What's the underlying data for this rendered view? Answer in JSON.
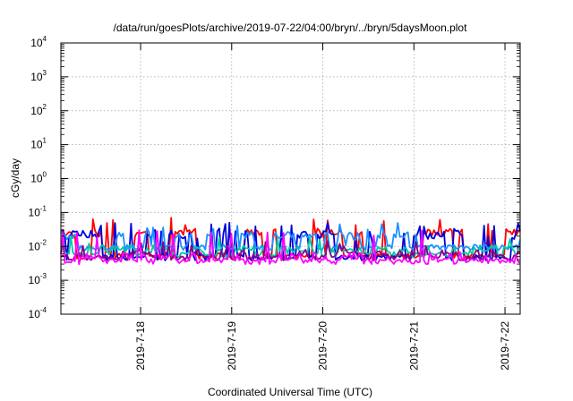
{
  "chart_data": {
    "type": "line",
    "title": "/data/run/goesPlots/archive/2019-07-22/04:00/bryn/../bryn/5daysMoon.plot",
    "xlabel": "Coordinated Universal Time (UTC)",
    "ylabel": "cGy/day",
    "yscale": "log",
    "ylim": [
      0.0001,
      10000
    ],
    "xlim": [
      "2019-07-17T03:00",
      "2019-07-22T04:00"
    ],
    "grid": true,
    "legend": "none",
    "y_ticks": [
      {
        "base": "10",
        "exp": "-4",
        "value": 0.0001
      },
      {
        "base": "10",
        "exp": "-3",
        "value": 0.001
      },
      {
        "base": "10",
        "exp": "-2",
        "value": 0.01
      },
      {
        "base": "10",
        "exp": "-1",
        "value": 0.1
      },
      {
        "base": "10",
        "exp": "0",
        "value": 1
      },
      {
        "base": "10",
        "exp": "1",
        "value": 10
      },
      {
        "base": "10",
        "exp": "2",
        "value": 100
      },
      {
        "base": "10",
        "exp": "3",
        "value": 1000
      },
      {
        "base": "10",
        "exp": "4",
        "value": 10000
      }
    ],
    "x_ticks": [
      {
        "label": "2019-7-18",
        "value": "2019-07-18T00:00"
      },
      {
        "label": "2019-7-19",
        "value": "2019-07-19T00:00"
      },
      {
        "label": "2019-7-20",
        "value": "2019-07-20T00:00"
      },
      {
        "label": "2019-7-21",
        "value": "2019-07-21T00:00"
      },
      {
        "label": "2019-7-22",
        "value": "2019-07-22T00:00"
      }
    ],
    "series": [
      {
        "color": "#ff0000",
        "base": 0.025,
        "low": 0.005,
        "high": 0.07,
        "seed": 11
      },
      {
        "color": "#0000dd",
        "base": 0.022,
        "low": 0.0045,
        "high": 0.05,
        "seed": 23
      },
      {
        "color": "#1e90ff",
        "base": 0.02,
        "low": 0.009,
        "high": 0.05,
        "seed": 37
      },
      {
        "color": "#00c8a0",
        "base": 0.008,
        "low": 0.0055,
        "high": 0.02,
        "seed": 41
      },
      {
        "color": "#8b008b",
        "base": 0.006,
        "low": 0.0045,
        "high": 0.015,
        "seed": 53
      },
      {
        "color": "#ff00ff",
        "base": 0.005,
        "low": 0.0035,
        "high": 0.03,
        "seed": 67
      }
    ]
  }
}
